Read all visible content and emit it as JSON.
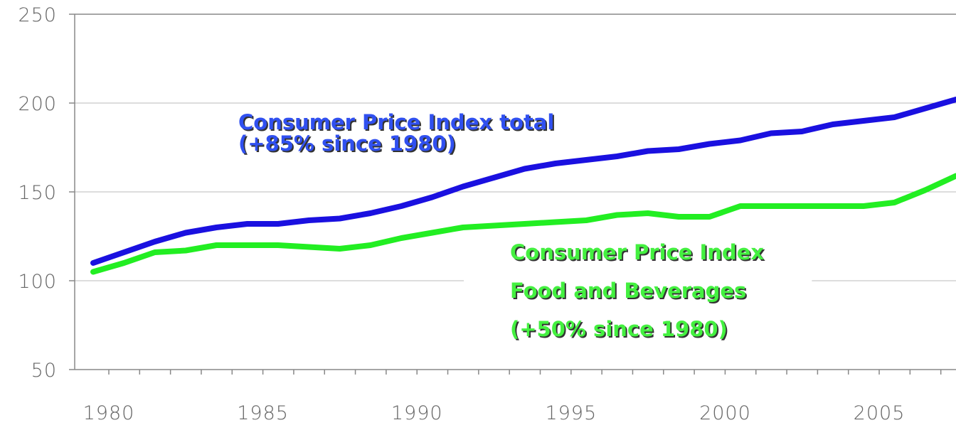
{
  "chart_data": {
    "type": "line",
    "x": [
      1980,
      1981,
      1982,
      1983,
      1984,
      1985,
      1986,
      1987,
      1988,
      1989,
      1990,
      1991,
      1992,
      1993,
      1994,
      1995,
      1996,
      1997,
      1998,
      1999,
      2000,
      2001,
      2002,
      2003,
      2004,
      2005,
      2006,
      2007,
      2008
    ],
    "series": [
      {
        "color": "#1a10e0",
        "values": [
          110,
          116,
          122,
          127,
          130,
          132,
          132,
          134,
          135,
          138,
          142,
          147,
          153,
          158,
          163,
          166,
          168,
          170,
          173,
          174,
          177,
          179,
          183,
          184,
          188,
          190,
          192,
          197,
          202
        ]
      },
      {
        "color": "#22ee22",
        "values": [
          105,
          110,
          116,
          117,
          120,
          120,
          120,
          119,
          118,
          120,
          124,
          127,
          130,
          131,
          132,
          133,
          134,
          137,
          138,
          136,
          136,
          142,
          142,
          142,
          142,
          142,
          144,
          151,
          159
        ]
      }
    ],
    "annotations": [
      {
        "lines": [
          "Consumer Price Index total",
          "(+85% since 1980)"
        ],
        "color": "#3050f0"
      },
      {
        "lines": [
          "Consumer Price Index",
          "Food and Beverages",
          "(+50% since 1980)"
        ],
        "color": "#44f040"
      }
    ],
    "xlim": [
      1979.4,
      2008
    ],
    "xticks": [
      1980,
      1985,
      1990,
      1995,
      2000,
      2005
    ],
    "ylim": [
      50,
      250
    ],
    "yticks": [
      50,
      100,
      150,
      200,
      250
    ],
    "grid": true
  }
}
